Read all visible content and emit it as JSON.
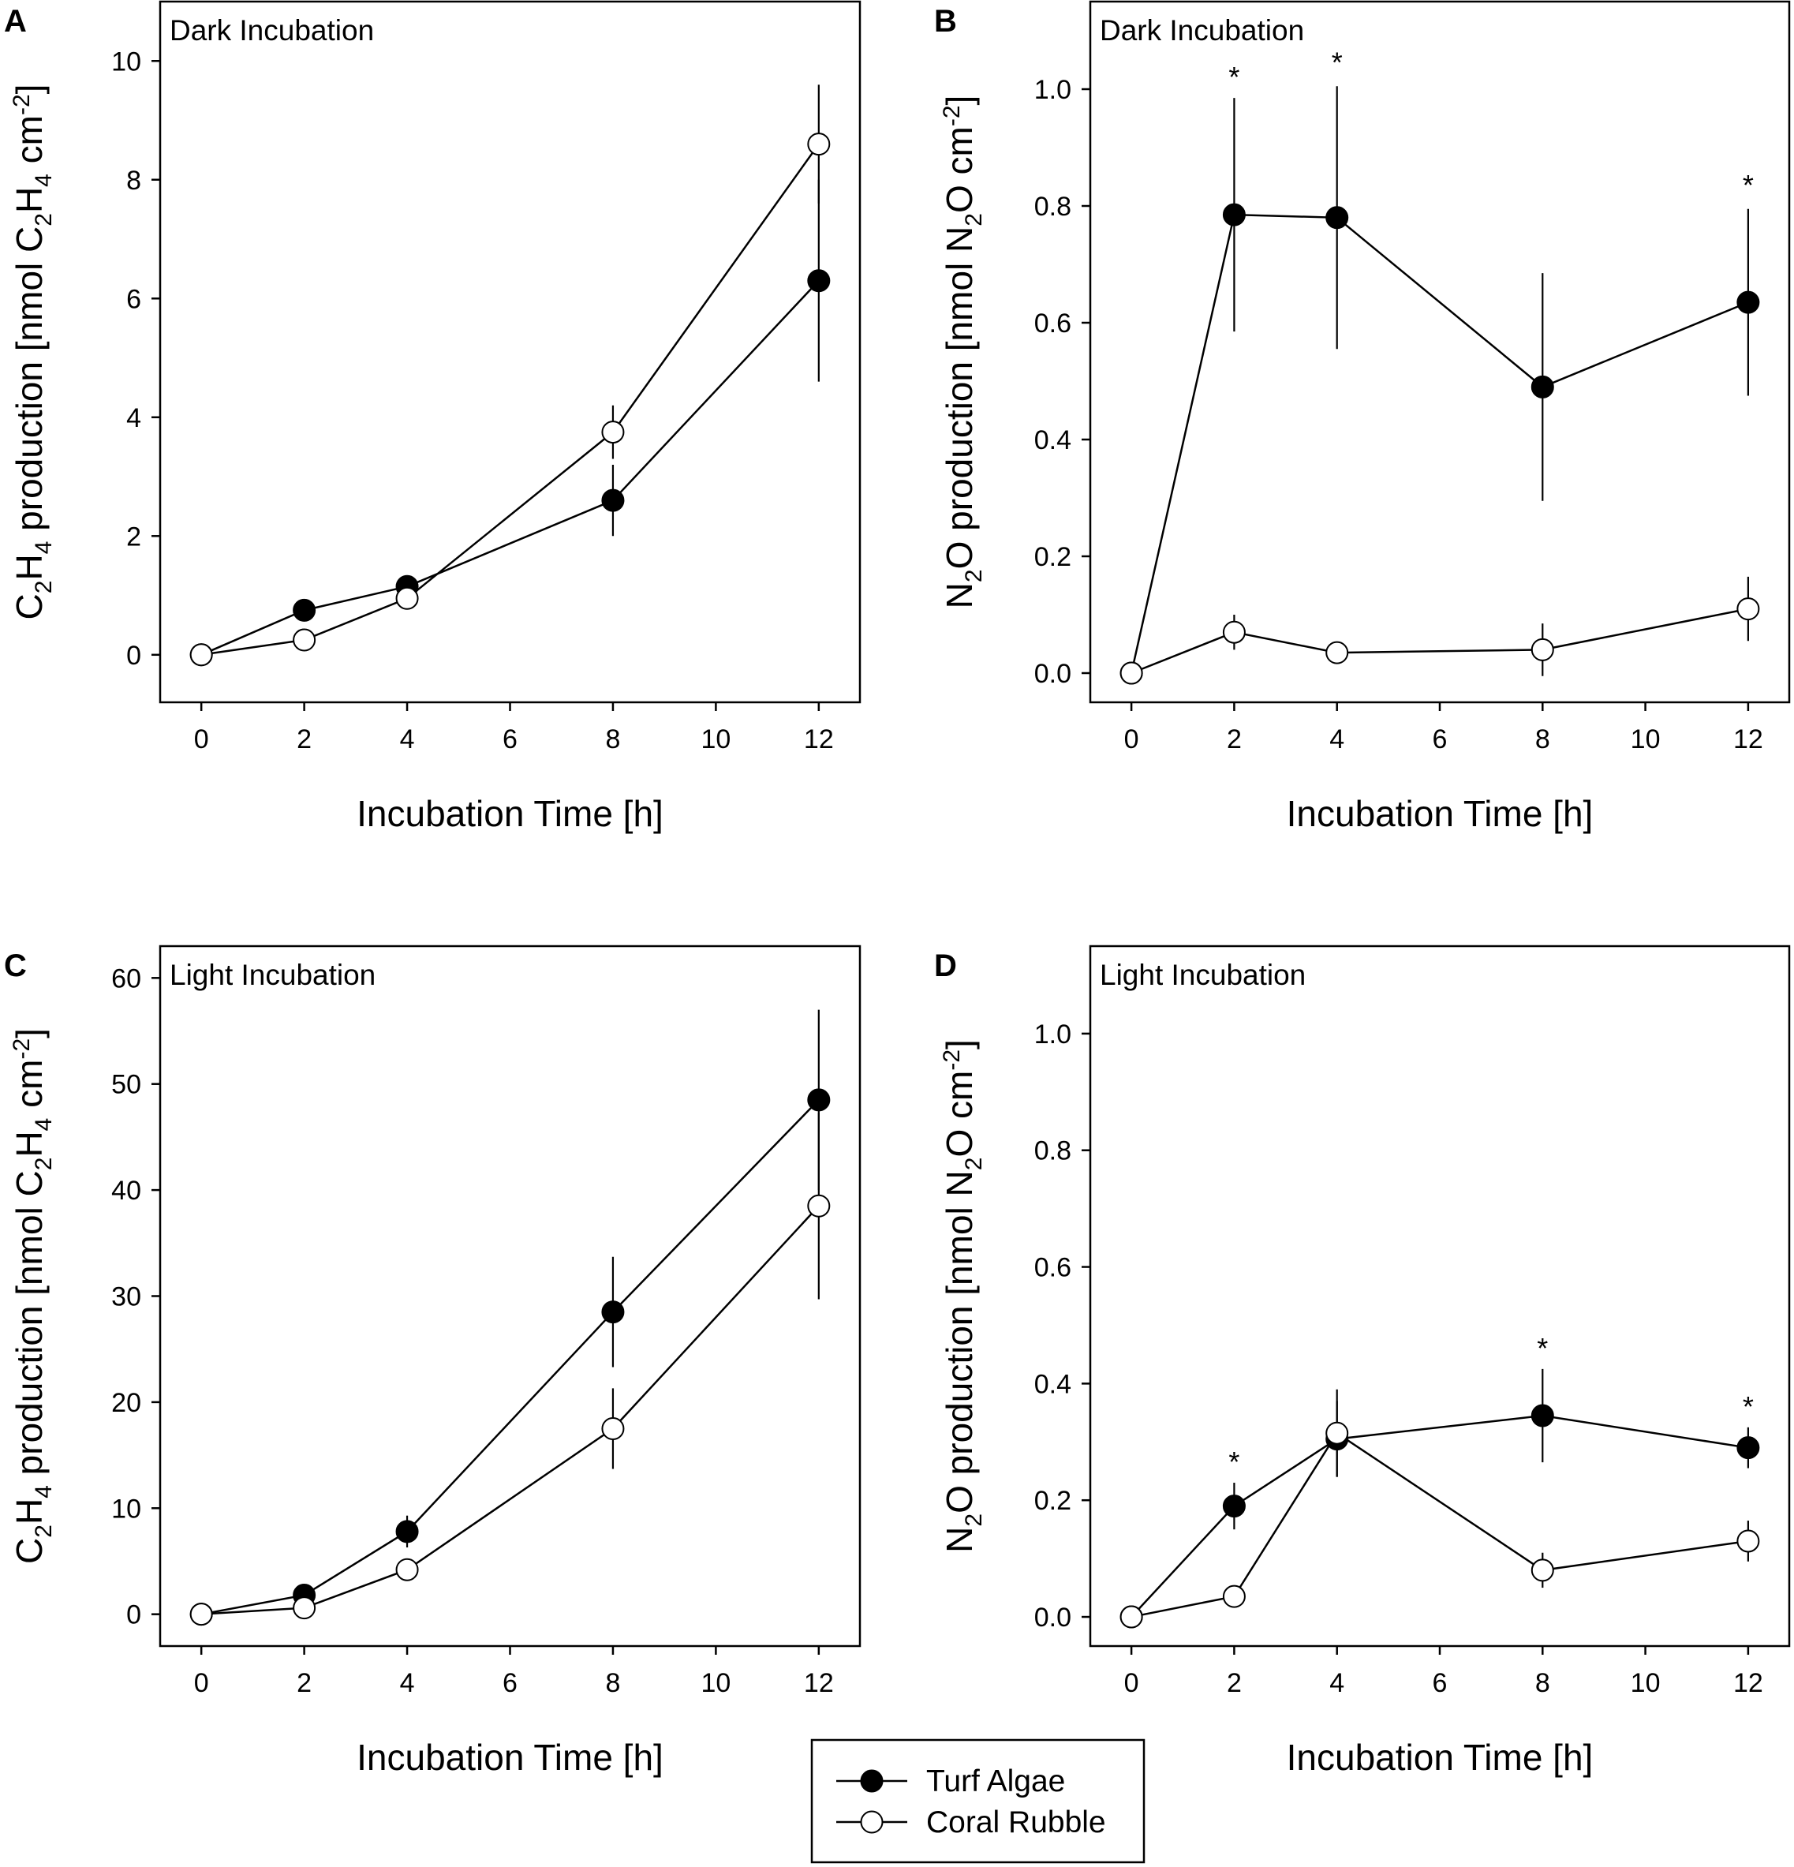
{
  "figure": {
    "legend": {
      "entries": [
        {
          "label": "Turf Algae",
          "fill": "#000000"
        },
        {
          "label": "Coral Rubble",
          "fill": "#ffffff"
        }
      ]
    }
  },
  "chart_data": [
    {
      "panel_label": "A",
      "type": "line",
      "title": "Dark Incubation",
      "xlabel": "Incubation Time [h]",
      "ylabel": "C2H4 production [nmol C2H4 cm-2]",
      "xticks": [
        0,
        2,
        4,
        6,
        8,
        10,
        12
      ],
      "yticks": [
        0,
        2,
        4,
        6,
        8,
        10
      ],
      "ytick_labels": [
        "0",
        "2",
        "4",
        "6",
        "8",
        "10"
      ],
      "xlim": [
        -0.8,
        12.8
      ],
      "ylim": [
        -0.8,
        11
      ],
      "x": [
        0,
        2,
        4,
        8,
        12
      ],
      "series": [
        {
          "name": "Turf Algae",
          "values": [
            0,
            0.75,
            1.15,
            2.6,
            6.3
          ],
          "errors": [
            0,
            0,
            0,
            0.6,
            1.7
          ]
        },
        {
          "name": "Coral Rubble",
          "values": [
            0,
            0.25,
            0.95,
            3.75,
            8.6
          ],
          "errors": [
            0,
            0,
            0,
            0.45,
            1.0
          ]
        }
      ],
      "annotations": []
    },
    {
      "panel_label": "B",
      "type": "line",
      "title": "Dark Incubation",
      "xlabel": "Incubation Time [h]",
      "ylabel": "N2O production [nmol N2O cm-2]",
      "xticks": [
        0,
        2,
        4,
        6,
        8,
        10,
        12
      ],
      "yticks": [
        0,
        0.2,
        0.4,
        0.6,
        0.8,
        1.0
      ],
      "ytick_labels": [
        "0.0",
        "0.2",
        "0.4",
        "0.6",
        "0.8",
        "1.0"
      ],
      "xlim": [
        -0.8,
        12.8
      ],
      "ylim": [
        -0.05,
        1.15
      ],
      "x": [
        0,
        2,
        4,
        8,
        12
      ],
      "series": [
        {
          "name": "Turf Algae",
          "values": [
            0,
            0.785,
            0.78,
            0.49,
            0.635
          ],
          "errors": [
            0,
            0.2,
            0.225,
            0.195,
            0.16
          ]
        },
        {
          "name": "Coral Rubble",
          "values": [
            0,
            0.07,
            0.035,
            0.04,
            0.11
          ],
          "errors": [
            0,
            0.03,
            0,
            0.045,
            0.055
          ]
        }
      ],
      "annotations": [
        {
          "x": 2,
          "y": 1.02,
          "text": "*"
        },
        {
          "x": 4,
          "y": 1.045,
          "text": "*"
        },
        {
          "x": 12,
          "y": 0.835,
          "text": "*"
        }
      ]
    },
    {
      "panel_label": "C",
      "type": "line",
      "title": "Light Incubation",
      "xlabel": "Incubation Time [h]",
      "ylabel": "C2H4 production [nmol C2H4 cm-2]",
      "xticks": [
        0,
        2,
        4,
        6,
        8,
        10,
        12
      ],
      "yticks": [
        0,
        10,
        20,
        30,
        40,
        50,
        60
      ],
      "ytick_labels": [
        "0",
        "10",
        "20",
        "30",
        "40",
        "50",
        "60"
      ],
      "xlim": [
        -0.8,
        12.8
      ],
      "ylim": [
        -3,
        63
      ],
      "x": [
        0,
        2,
        4,
        8,
        12
      ],
      "series": [
        {
          "name": "Turf Algae",
          "values": [
            0,
            1.8,
            7.8,
            28.5,
            48.5
          ],
          "errors": [
            0,
            0,
            1.5,
            5.2,
            8.5
          ]
        },
        {
          "name": "Coral Rubble",
          "values": [
            0,
            0.6,
            4.2,
            17.5,
            38.5
          ],
          "errors": [
            0,
            0,
            0,
            3.8,
            8.8
          ]
        }
      ],
      "annotations": []
    },
    {
      "panel_label": "D",
      "type": "line",
      "title": "Light Incubation",
      "xlabel": "Incubation Time [h]",
      "ylabel": "N2O production [nmol N2O cm-2]",
      "xticks": [
        0,
        2,
        4,
        6,
        8,
        10,
        12
      ],
      "yticks": [
        0,
        0.2,
        0.4,
        0.6,
        0.8,
        1.0
      ],
      "ytick_labels": [
        "0.0",
        "0.2",
        "0.4",
        "0.6",
        "0.8",
        "1.0"
      ],
      "xlim": [
        -0.8,
        12.8
      ],
      "ylim": [
        -0.05,
        1.15
      ],
      "x": [
        0,
        2,
        4,
        8,
        12
      ],
      "series": [
        {
          "name": "Turf Algae",
          "values": [
            0,
            0.19,
            0.305,
            0.345,
            0.29
          ],
          "errors": [
            0,
            0.04,
            0.065,
            0.08,
            0.035
          ]
        },
        {
          "name": "Coral Rubble",
          "values": [
            0,
            0.035,
            0.315,
            0.08,
            0.13
          ],
          "errors": [
            0,
            0,
            0.075,
            0.03,
            0.035
          ]
        }
      ],
      "annotations": [
        {
          "x": 2,
          "y": 0.265,
          "text": "*"
        },
        {
          "x": 8,
          "y": 0.46,
          "text": "*"
        },
        {
          "x": 12,
          "y": 0.36,
          "text": "*"
        }
      ]
    }
  ]
}
